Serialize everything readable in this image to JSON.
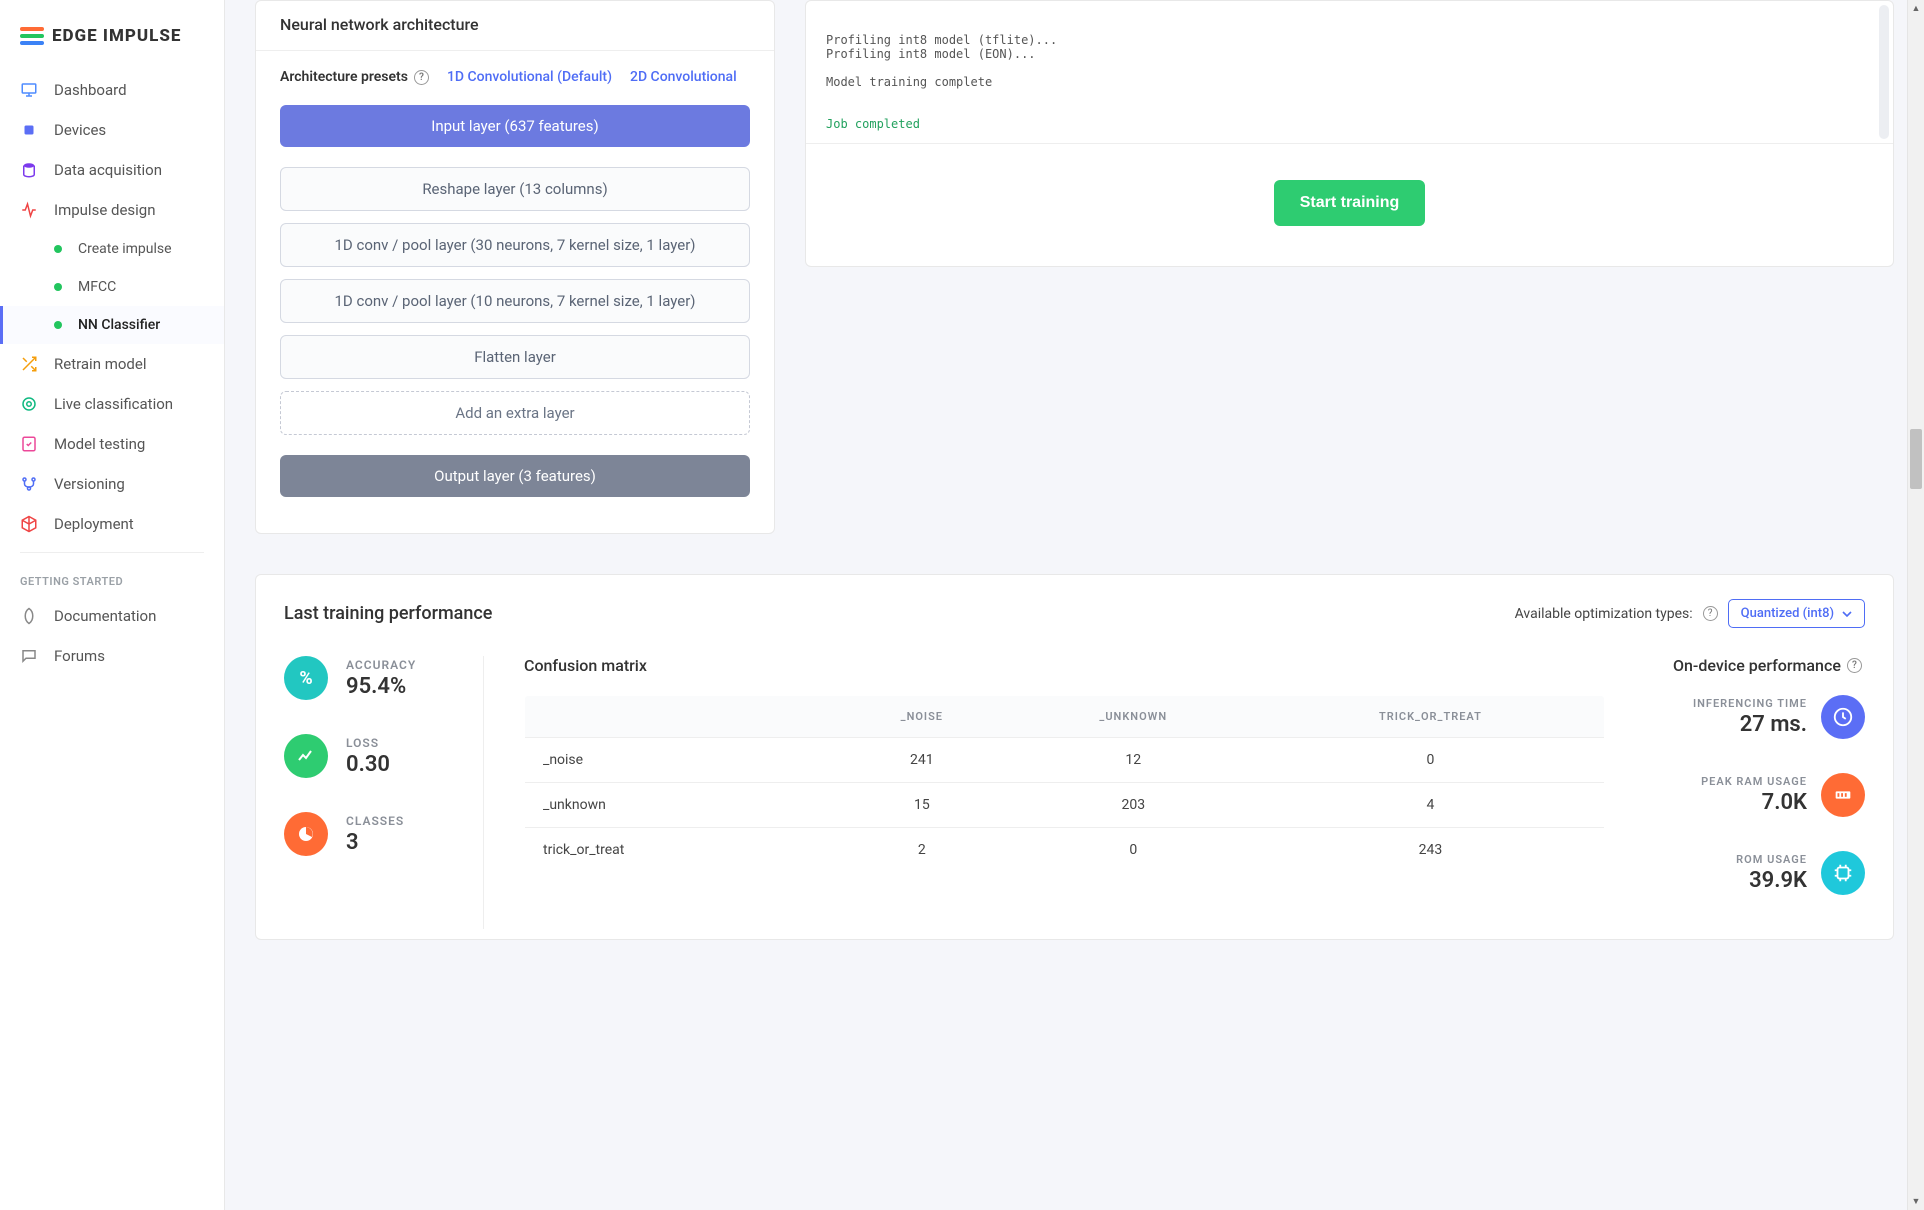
{
  "brand": {
    "name": "EDGE IMPULSE"
  },
  "colors": {
    "accent": "#5b6ef5",
    "green": "#2ecc71",
    "teal": "#22c7c1",
    "orange": "#ff6b35",
    "purpleLayer": "#6c7ae0",
    "grayLayer": "#7d8597",
    "successGreen": "#22c55e",
    "bluePerf": "#5b6ef5",
    "orangePerf": "#ff6b35",
    "cyanPerf": "#1fc8db"
  },
  "nav": {
    "items": [
      {
        "label": "Dashboard",
        "icon": "monitor"
      },
      {
        "label": "Devices",
        "icon": "cpu"
      },
      {
        "label": "Data acquisition",
        "icon": "database"
      },
      {
        "label": "Impulse design",
        "icon": "activity",
        "sub": [
          {
            "label": "Create impulse"
          },
          {
            "label": "MFCC"
          },
          {
            "label": "NN Classifier",
            "current": true
          }
        ]
      },
      {
        "label": "Retrain model",
        "icon": "shuffle"
      },
      {
        "label": "Live classification",
        "icon": "target"
      },
      {
        "label": "Model testing",
        "icon": "check"
      },
      {
        "label": "Versioning",
        "icon": "branch"
      },
      {
        "label": "Deployment",
        "icon": "box"
      }
    ],
    "sectionLabel": "GETTING STARTED",
    "secondary": [
      {
        "label": "Documentation",
        "icon": "rocket"
      },
      {
        "label": "Forums",
        "icon": "chat"
      }
    ]
  },
  "architecture": {
    "title": "Neural network architecture",
    "presetsLabel": "Architecture presets",
    "presets": [
      {
        "label": "1D Convolutional (Default)"
      },
      {
        "label": "2D Convolutional"
      }
    ],
    "inputLayer": "Input layer (637 features)",
    "layers": [
      "Reshape layer (13 columns)",
      "1D conv / pool layer (30 neurons, 7 kernel size, 1 layer)",
      "1D conv / pool layer (10 neurons, 7 kernel size, 1 layer)",
      "Flatten layer"
    ],
    "addLayer": "Add an extra layer",
    "outputLayer": "Output layer (3 features)"
  },
  "console": {
    "lines": [
      "Profiling int8 model (tflite)...",
      "Profiling int8 model (EON)...",
      "",
      "Model training complete",
      ""
    ],
    "success": "Job completed"
  },
  "startButton": "Start training",
  "performance": {
    "title": "Last training performance",
    "optLabel": "Available optimization types:",
    "optSelected": "Quantized (int8)",
    "metrics": {
      "accuracy": {
        "label": "ACCURACY",
        "value": "95.4%",
        "iconBg": "#22c7c1",
        "glyph": "%"
      },
      "loss": {
        "label": "LOSS",
        "value": "0.30",
        "iconBg": "#2ecc71",
        "glyph": "chart"
      },
      "classes": {
        "label": "CLASSES",
        "value": "3",
        "iconBg": "#ff6b35",
        "glyph": "pie"
      }
    },
    "confusion": {
      "title": "Confusion matrix",
      "headers": [
        "",
        "_NOISE",
        "_UNKNOWN",
        "TRICK_OR_TREAT"
      ],
      "rows": [
        {
          "label": "_noise",
          "cells": [
            "241",
            "12",
            "0"
          ]
        },
        {
          "label": "_unknown",
          "cells": [
            "15",
            "203",
            "4"
          ]
        },
        {
          "label": "trick_or_treat",
          "cells": [
            "2",
            "0",
            "243"
          ]
        }
      ]
    },
    "ondevice": {
      "title": "On-device performance",
      "items": [
        {
          "label": "INFERENCING TIME",
          "value": "27 ms.",
          "iconBg": "#5b6ef5",
          "glyph": "clock"
        },
        {
          "label": "PEAK RAM USAGE",
          "value": "7.0K",
          "iconBg": "#ff6b35",
          "glyph": "ram"
        },
        {
          "label": "ROM USAGE",
          "value": "39.9K",
          "iconBg": "#1fc8db",
          "glyph": "chip"
        }
      ]
    }
  }
}
